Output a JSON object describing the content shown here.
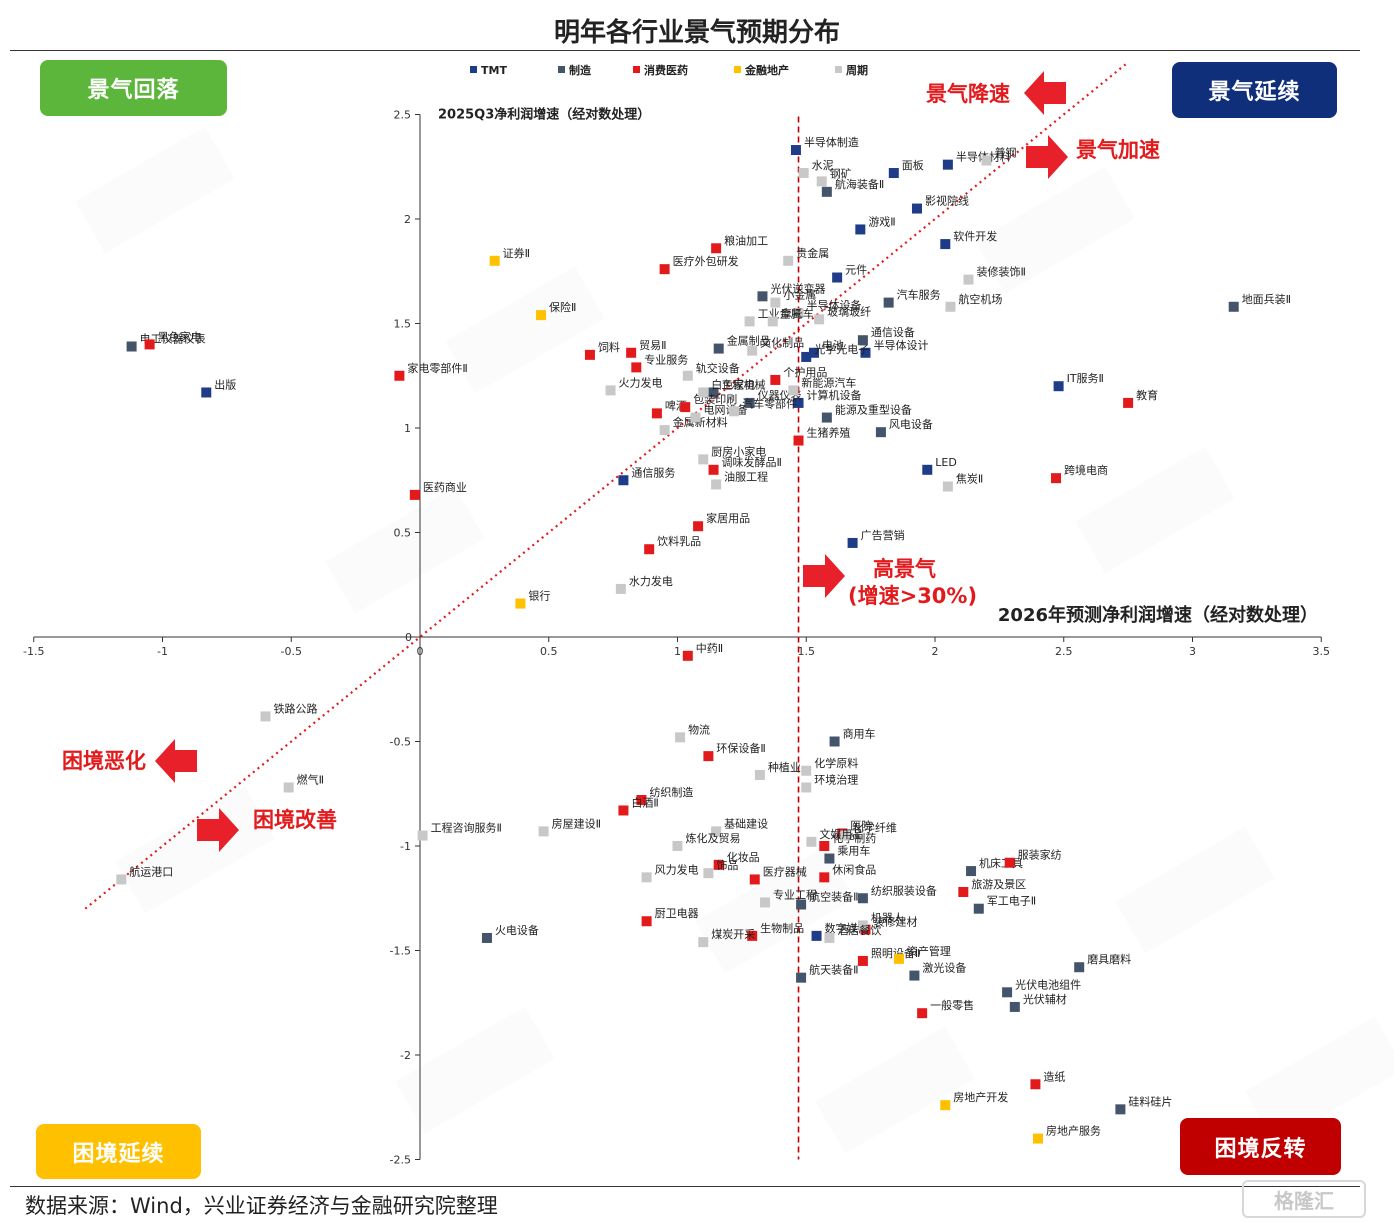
{
  "source": "数据来源：Wind，兴业证券经济与金融研究院整理",
  "logo_text": "格隆汇",
  "colors": {
    "TMT": "#1f3c88",
    "制造": "#44546a",
    "消费医药": "#e31a1c",
    "金融地产": "#ffc000",
    "周期": "#c8c8c8",
    "accent": "#e31a1c"
  },
  "quadrants": [
    {
      "label": "景气回落",
      "color": "#5cb63b"
    },
    {
      "label": "景气延续",
      "color": "#0f2f7a"
    },
    {
      "label": "困境延续",
      "color": "#ffc000"
    },
    {
      "label": "困境反转",
      "color": "#c00000"
    }
  ],
  "annotations": {
    "decel": "景气降速",
    "accel": "景气加速",
    "worsen": "困境恶化",
    "improve": "困境改善",
    "high_line1": "高景气",
    "high_line2": "(增速>30%)"
  },
  "chart_data": {
    "type": "scatter",
    "title": "明年各行业景气预期分布",
    "xlabel": "2026年预测净利润增速（经对数处理）",
    "ylabel": "2025Q3净利润增速（经对数处理）",
    "xlim": [
      -1.5,
      3.5
    ],
    "ylim": [
      -2.5,
      2.5
    ],
    "xticks": [
      -1.5,
      -1,
      -0.5,
      0,
      0.5,
      1,
      1.5,
      2,
      2.5,
      3,
      3.5
    ],
    "yticks": [
      2.5,
      2,
      1.5,
      1,
      0.5,
      -0.5,
      -1,
      -1.5,
      -2,
      -2.5
    ],
    "xtick_labels": [
      "-1.5",
      "-1",
      "-0.5",
      "0",
      "0.5",
      "1",
      "1.5",
      "2",
      "2.5",
      "3",
      "3.5"
    ],
    "ytick_labels": [
      "2.5",
      "2",
      "1.5",
      "1",
      "0.5",
      "-0.5",
      "-1",
      "-1.5",
      "-2",
      "-2.5"
    ],
    "threshold_x": 1.47,
    "diagonal": true,
    "legend_position": "top-center",
    "series": [
      {
        "name": "TMT",
        "points": [
          {
            "label": "半导体制造",
            "x": 1.46,
            "y": 2.33
          },
          {
            "label": "面板",
            "x": 1.84,
            "y": 2.22
          },
          {
            "label": "半导体材料",
            "x": 2.05,
            "y": 2.26
          },
          {
            "label": "影视院线",
            "x": 1.93,
            "y": 2.05
          },
          {
            "label": "游戏Ⅱ",
            "x": 1.71,
            "y": 1.95
          },
          {
            "label": "软件开发",
            "x": 2.04,
            "y": 1.88
          },
          {
            "label": "元件",
            "x": 1.62,
            "y": 1.72
          },
          {
            "label": "电池",
            "x": 1.53,
            "y": 1.36
          },
          {
            "label": "半导体设计",
            "x": 1.73,
            "y": 1.36
          },
          {
            "label": "光学光电子",
            "x": 1.5,
            "y": 1.34
          },
          {
            "label": "计算机设备",
            "x": 1.47,
            "y": 1.12
          },
          {
            "label": "IT服务Ⅱ",
            "x": 2.48,
            "y": 1.2
          },
          {
            "label": "LED",
            "x": 1.97,
            "y": 0.8
          },
          {
            "label": "广告营销",
            "x": 1.68,
            "y": 0.45
          },
          {
            "label": "通信服务",
            "x": 0.79,
            "y": 0.75
          },
          {
            "label": "出版",
            "x": -0.83,
            "y": 1.17
          },
          {
            "label": "数字媒体",
            "x": 1.54,
            "y": -1.43
          }
        ]
      },
      {
        "name": "制造",
        "points": [
          {
            "label": "航海装备Ⅱ",
            "x": 1.58,
            "y": 2.13
          },
          {
            "label": "地面兵装Ⅱ",
            "x": 3.16,
            "y": 1.58
          },
          {
            "label": "汽车服务",
            "x": 1.82,
            "y": 1.6
          },
          {
            "label": "通信设备",
            "x": 1.72,
            "y": 1.42
          },
          {
            "label": "光伏逆变器",
            "x": 1.33,
            "y": 1.63
          },
          {
            "label": "金属制品",
            "x": 1.16,
            "y": 1.38
          },
          {
            "label": "工程机械",
            "x": 1.14,
            "y": 1.17
          },
          {
            "label": "仪器仪表",
            "x": 1.28,
            "y": 1.12
          },
          {
            "label": "能源及重型设备",
            "x": 1.58,
            "y": 1.05
          },
          {
            "label": "风电设备",
            "x": 1.79,
            "y": 0.98
          },
          {
            "label": "电工仪器仪表",
            "x": -1.12,
            "y": 1.39
          },
          {
            "label": "商用车",
            "x": 1.61,
            "y": -0.5
          },
          {
            "label": "乘用车",
            "x": 1.59,
            "y": -1.06
          },
          {
            "label": "机床工具",
            "x": 2.14,
            "y": -1.12
          },
          {
            "label": "纺织服装设备",
            "x": 1.72,
            "y": -1.25
          },
          {
            "label": "军工电子Ⅱ",
            "x": 2.17,
            "y": -1.3
          },
          {
            "label": "火电设备",
            "x": 0.26,
            "y": -1.44
          },
          {
            "label": "航空装备Ⅱ",
            "x": 1.48,
            "y": -1.28
          },
          {
            "label": "航天装备Ⅱ",
            "x": 1.48,
            "y": -1.63
          },
          {
            "label": "激光设备",
            "x": 1.92,
            "y": -1.62
          },
          {
            "label": "光伏电池组件",
            "x": 2.28,
            "y": -1.7
          },
          {
            "label": "光伏辅材",
            "x": 2.31,
            "y": -1.77
          },
          {
            "label": "磨具磨料",
            "x": 2.56,
            "y": -1.58
          },
          {
            "label": "硅料硅片",
            "x": 2.72,
            "y": -2.26
          }
        ]
      },
      {
        "name": "消费医药",
        "points": [
          {
            "label": "粮油加工",
            "x": 1.15,
            "y": 1.86
          },
          {
            "label": "医疗外包研发",
            "x": 0.95,
            "y": 1.76
          },
          {
            "label": "黑色家电",
            "x": -1.05,
            "y": 1.4
          },
          {
            "label": "家电零部件Ⅱ",
            "x": -0.08,
            "y": 1.25
          },
          {
            "label": "饲料",
            "x": 0.66,
            "y": 1.35
          },
          {
            "label": "贸易Ⅱ",
            "x": 0.82,
            "y": 1.36
          },
          {
            "label": "专业服务",
            "x": 0.84,
            "y": 1.29
          },
          {
            "label": "啤酒",
            "x": 0.92,
            "y": 1.07
          },
          {
            "label": "包装印刷",
            "x": 1.03,
            "y": 1.1
          },
          {
            "label": "个护用品",
            "x": 1.38,
            "y": 1.23
          },
          {
            "label": "生猪养殖",
            "x": 1.47,
            "y": 0.94
          },
          {
            "label": "调味发酵品Ⅱ",
            "x": 1.14,
            "y": 0.8
          },
          {
            "label": "家居用品",
            "x": 1.08,
            "y": 0.53
          },
          {
            "label": "饮料乳品",
            "x": 0.89,
            "y": 0.42
          },
          {
            "label": "医药商业",
            "x": -0.02,
            "y": 0.68
          },
          {
            "label": "跨境电商",
            "x": 2.47,
            "y": 0.76
          },
          {
            "label": "教育",
            "x": 2.75,
            "y": 1.12
          },
          {
            "label": "中药Ⅱ",
            "x": 1.04,
            "y": -0.09
          },
          {
            "label": "环保设备Ⅱ",
            "x": 1.12,
            "y": -0.57
          },
          {
            "label": "纺织制造",
            "x": 0.86,
            "y": -0.78
          },
          {
            "label": "白酒Ⅱ",
            "x": 0.79,
            "y": -0.83
          },
          {
            "label": "医院",
            "x": 1.64,
            "y": -0.94
          },
          {
            "label": "化学制药",
            "x": 1.57,
            "y": -1.0
          },
          {
            "label": "化妆品",
            "x": 1.16,
            "y": -1.09
          },
          {
            "label": "医疗器械",
            "x": 1.3,
            "y": -1.16
          },
          {
            "label": "休闲食品",
            "x": 1.57,
            "y": -1.15
          },
          {
            "label": "服装家纺",
            "x": 2.29,
            "y": -1.08
          },
          {
            "label": "旅游及景区",
            "x": 2.11,
            "y": -1.22
          },
          {
            "label": "厨卫电器",
            "x": 0.88,
            "y": -1.36
          },
          {
            "label": "生物制品",
            "x": 1.29,
            "y": -1.43
          },
          {
            "label": "照明设备Ⅱ",
            "x": 1.72,
            "y": -1.55
          },
          {
            "label": "一般零售",
            "x": 1.95,
            "y": -1.8
          },
          {
            "label": "造纸",
            "x": 2.39,
            "y": -2.14
          },
          {
            "label": "装修建材",
            "x": 1.73,
            "y": -1.4
          }
        ]
      },
      {
        "name": "金融地产",
        "points": [
          {
            "label": "证券Ⅱ",
            "x": 0.29,
            "y": 1.8
          },
          {
            "label": "保险Ⅱ",
            "x": 0.47,
            "y": 1.54
          },
          {
            "label": "银行",
            "x": 0.39,
            "y": 0.16
          },
          {
            "label": "资产管理",
            "x": 1.86,
            "y": -1.54
          },
          {
            "label": "房地产开发",
            "x": 2.04,
            "y": -2.24
          },
          {
            "label": "房地产服务",
            "x": 2.4,
            "y": -2.4
          }
        ]
      },
      {
        "name": "周期",
        "points": [
          {
            "label": "水泥",
            "x": 1.49,
            "y": 2.22
          },
          {
            "label": "钢矿",
            "x": 1.56,
            "y": 2.18
          },
          {
            "label": "普钢",
            "x": 2.2,
            "y": 2.28
          },
          {
            "label": "贵金属",
            "x": 1.43,
            "y": 1.8
          },
          {
            "label": "小金属",
            "x": 1.38,
            "y": 1.6
          },
          {
            "label": "半导体设备",
            "x": 1.47,
            "y": 1.55
          },
          {
            "label": "玻璃玻纤",
            "x": 1.55,
            "y": 1.52
          },
          {
            "label": "装修装饰Ⅱ",
            "x": 2.13,
            "y": 1.71
          },
          {
            "label": "航空机场",
            "x": 2.06,
            "y": 1.58
          },
          {
            "label": "工业金属",
            "x": 1.28,
            "y": 1.51
          },
          {
            "label": "摩托车",
            "x": 1.37,
            "y": 1.51
          },
          {
            "label": "文化制品",
            "x": 1.29,
            "y": 1.37
          },
          {
            "label": "轨交设备",
            "x": 1.04,
            "y": 1.25
          },
          {
            "label": "火力发电",
            "x": 0.74,
            "y": 1.18
          },
          {
            "label": "白色家电",
            "x": 1.1,
            "y": 1.17
          },
          {
            "label": "金属新材料",
            "x": 0.95,
            "y": 0.99
          },
          {
            "label": "电网设备",
            "x": 1.07,
            "y": 1.05
          },
          {
            "label": "汽车零部件",
            "x": 1.22,
            "y": 1.08
          },
          {
            "label": "新能源汽车",
            "x": 1.45,
            "y": 1.18
          },
          {
            "label": "厨房小家电",
            "x": 1.1,
            "y": 0.85
          },
          {
            "label": "油服工程",
            "x": 1.15,
            "y": 0.73
          },
          {
            "label": "焦炭Ⅱ",
            "x": 2.05,
            "y": 0.72
          },
          {
            "label": "水力发电",
            "x": 0.78,
            "y": 0.23
          },
          {
            "label": "铁路公路",
            "x": -0.6,
            "y": -0.38
          },
          {
            "label": "燃气Ⅱ",
            "x": -0.51,
            "y": -0.72
          },
          {
            "label": "工程咨询服务Ⅱ",
            "x": 0.01,
            "y": -0.95
          },
          {
            "label": "航运港口",
            "x": -1.16,
            "y": -1.16
          },
          {
            "label": "物流",
            "x": 1.01,
            "y": -0.48
          },
          {
            "label": "种植业",
            "x": 1.32,
            "y": -0.66
          },
          {
            "label": "化学原料",
            "x": 1.5,
            "y": -0.64
          },
          {
            "label": "环境治理",
            "x": 1.5,
            "y": -0.72
          },
          {
            "label": "房屋建设Ⅱ",
            "x": 0.48,
            "y": -0.93
          },
          {
            "label": "基础建设",
            "x": 1.15,
            "y": -0.93
          },
          {
            "label": "炼化及贸易",
            "x": 1.0,
            "y": -1.0
          },
          {
            "label": "化学纤维",
            "x": 1.65,
            "y": -0.95
          },
          {
            "label": "文娱用品",
            "x": 1.52,
            "y": -0.98
          },
          {
            "label": "风力发电",
            "x": 0.88,
            "y": -1.15
          },
          {
            "label": "饰品",
            "x": 1.12,
            "y": -1.13
          },
          {
            "label": "专业工程",
            "x": 1.34,
            "y": -1.27
          },
          {
            "label": "机器人",
            "x": 1.72,
            "y": -1.38
          },
          {
            "label": "酒店餐饮",
            "x": 1.59,
            "y": -1.44
          },
          {
            "label": "煤炭开采",
            "x": 1.1,
            "y": -1.46
          }
        ]
      }
    ]
  }
}
